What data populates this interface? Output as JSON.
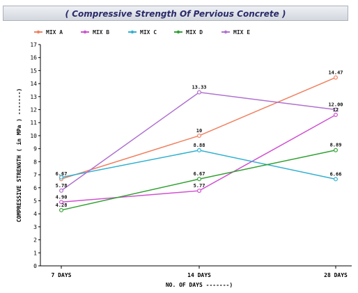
{
  "chart_data": {
    "type": "line",
    "title": "( Compressive Strength Of Pervious Concrete )",
    "xlabel": "NO. OF DAYS -------)",
    "ylabel": "COMPRESSIVE STRENGTH ( in MPa ) -------)",
    "categories": [
      "7 DAYS",
      "14 DAYS",
      "28 DAYS"
    ],
    "ylim": [
      0,
      17
    ],
    "yticks": [
      "0",
      "1",
      "2",
      "3",
      "4",
      "5",
      "6",
      "7",
      "8",
      "9",
      "10",
      "11",
      "12",
      "13",
      "14",
      "15",
      "16",
      "17"
    ],
    "grid": false,
    "legend_position": "top",
    "series": [
      {
        "name": "MIX A",
        "color": "#f08060",
        "values": [
          6.67,
          10,
          14.47
        ],
        "labels": [
          "6.67",
          "10",
          "14.47"
        ]
      },
      {
        "name": "MIX B",
        "color": "#d050d0",
        "values": [
          4.9,
          5.77,
          11.6
        ],
        "labels": [
          "4.90",
          "5.77",
          "12"
        ]
      },
      {
        "name": "MIX C",
        "color": "#30b0d0",
        "values": [
          6.8,
          8.88,
          6.66
        ],
        "labels": [
          "",
          "8.88",
          "6.66"
        ]
      },
      {
        "name": "MIX D",
        "color": "#30a030",
        "values": [
          4.28,
          6.67,
          8.89
        ],
        "labels": [
          "4.28",
          "6.67",
          "8.89"
        ]
      },
      {
        "name": "MIX E",
        "color": "#b070d0",
        "values": [
          5.78,
          13.33,
          12.0
        ],
        "labels": [
          "5.78",
          "13.33",
          "12.00"
        ]
      }
    ]
  }
}
